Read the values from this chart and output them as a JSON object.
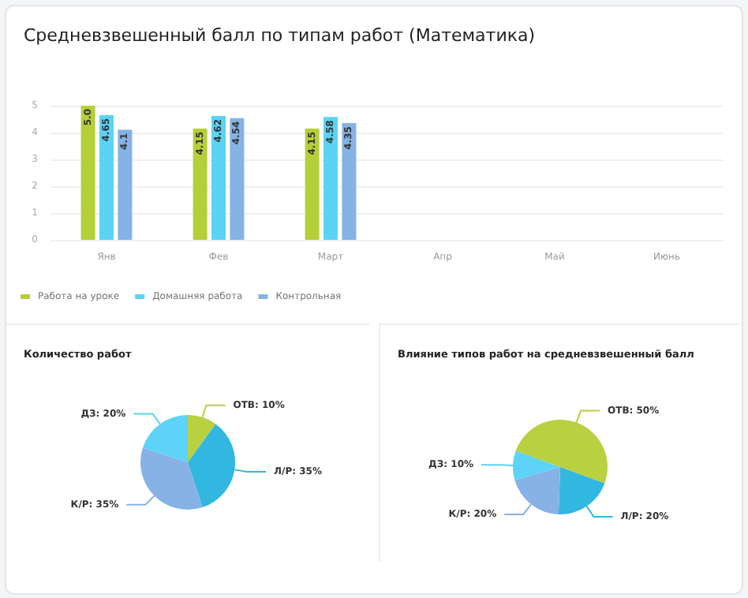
{
  "chart_data": [
    {
      "type": "bar",
      "title": "Средневзвешенный балл по типам работ (Математика)",
      "categories": [
        "Янв",
        "Фев",
        "Март",
        "Апр",
        "Май",
        "Июнь"
      ],
      "series": [
        {
          "name": "Работа на уроке",
          "color": "#b5cf3a",
          "values": [
            5.0,
            4.15,
            4.15,
            null,
            null,
            null
          ],
          "value_labels": [
            "5.0",
            "4.15",
            "4.15",
            null,
            null,
            null
          ]
        },
        {
          "name": "Домашняя работа",
          "color": "#5ad3f5",
          "values": [
            4.65,
            4.62,
            4.58,
            null,
            null,
            null
          ],
          "value_labels": [
            "4.65",
            "4.62",
            "4.58",
            null,
            null,
            null
          ]
        },
        {
          "name": "Контрольная",
          "color": "#84b3e4",
          "values": [
            4.1,
            4.54,
            4.35,
            null,
            null,
            null
          ],
          "value_labels": [
            "4.1",
            "4.54",
            "4.35",
            null,
            null,
            null
          ]
        }
      ],
      "ylim": [
        0,
        5
      ],
      "yticks": [
        0,
        1,
        2,
        3,
        4,
        5
      ],
      "grid": "y",
      "legend": "bottom left"
    },
    {
      "type": "pie",
      "title": "Количество работ",
      "categories": [
        "ОТВ",
        "Л/Р",
        "К/Р",
        "ДЗ"
      ],
      "values": [
        10,
        35,
        35,
        20
      ],
      "colors": [
        "#b9d040",
        "#31b7e0",
        "#86b2e6",
        "#5cd3f7"
      ],
      "value_labels": [
        "10%",
        "35%",
        "35%",
        "20%"
      ]
    },
    {
      "type": "pie",
      "title": "Влияние типов работ на средневзвешенный балл",
      "categories": [
        "ОТВ",
        "Л/Р",
        "К/Р",
        "ДЗ"
      ],
      "values": [
        50,
        20,
        20,
        10
      ],
      "colors": [
        "#b9d040",
        "#31b7e0",
        "#86b2e6",
        "#5cd3f7"
      ],
      "value_labels": [
        "50%",
        "20%",
        "20%",
        "10%"
      ]
    }
  ]
}
